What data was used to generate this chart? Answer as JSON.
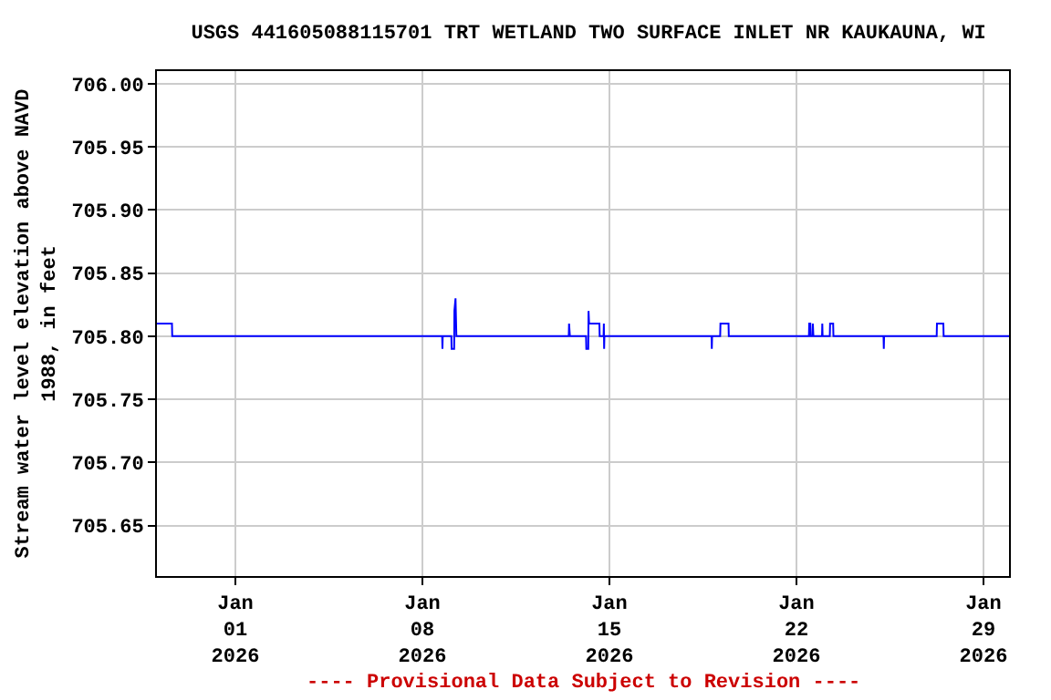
{
  "chart_data": {
    "type": "line",
    "title": "USGS 441605088115701 TRT WETLAND TWO SURFACE INLET NR KAUKAUNA, WI",
    "ylabel": "Stream water level elevation above NAVD\n1988, in feet",
    "annotations": [
      "---- Provisional Data Subject to Revision ----"
    ],
    "x": [
      "2025-12-29T01:30",
      "2025-12-29T15:00",
      "2025-12-29T15:15",
      "2026-01-08T17:45",
      "2026-01-08T18:00",
      "2026-01-08T18:15",
      "2026-01-09T02:00",
      "2026-01-09T02:15",
      "2026-01-09T04:30",
      "2026-01-09T04:45",
      "2026-01-09T05:45",
      "2026-01-09T06:30",
      "2026-01-13T11:30",
      "2026-01-13T11:45",
      "2026-01-13T12:30",
      "2026-01-14T03:00",
      "2026-01-14T03:15",
      "2026-01-14T05:00",
      "2026-01-14T05:15",
      "2026-01-14T05:45",
      "2026-01-14T15:00",
      "2026-01-14T15:15",
      "2026-01-14T18:45",
      "2026-01-14T19:00",
      "2026-01-14T19:15",
      "2026-01-14T19:30",
      "2026-01-18T19:45",
      "2026-01-18T20:00",
      "2026-01-18T20:15",
      "2026-01-19T03:30",
      "2026-01-19T03:45",
      "2026-01-19T11:00",
      "2026-01-19T11:15",
      "2026-01-22T11:15",
      "2026-01-22T11:30",
      "2026-01-22T12:30",
      "2026-01-22T12:45",
      "2026-01-22T14:30",
      "2026-01-22T14:45",
      "2026-01-22T15:15",
      "2026-01-22T23:00",
      "2026-01-22T23:15",
      "2026-01-22T23:30",
      "2026-01-23T06:00",
      "2026-01-23T06:15",
      "2026-01-23T09:00",
      "2026-01-23T09:15",
      "2026-01-25T06:15",
      "2026-01-25T06:30",
      "2026-01-25T06:45",
      "2026-01-27T06:00",
      "2026-01-27T06:15",
      "2026-01-27T12:00",
      "2026-01-27T12:15",
      "2026-01-29T23:00"
    ],
    "series": [
      {
        "color": "#0000ff",
        "values": [
          705.81,
          705.81,
          705.8,
          705.8,
          705.79,
          705.8,
          705.8,
          705.79,
          705.79,
          705.82,
          705.83,
          705.8,
          705.8,
          705.81,
          705.8,
          705.8,
          705.79,
          705.79,
          705.82,
          705.81,
          705.81,
          705.8,
          705.8,
          705.81,
          705.79,
          705.8,
          705.8,
          705.79,
          705.8,
          705.8,
          705.81,
          705.81,
          705.8,
          705.8,
          705.81,
          705.81,
          705.8,
          705.8,
          705.81,
          705.8,
          705.8,
          705.81,
          705.8,
          705.8,
          705.81,
          705.81,
          705.8,
          705.8,
          705.79,
          705.8,
          705.8,
          705.81,
          705.81,
          705.8,
          705.8
        ]
      }
    ],
    "xlim": [
      "2025-12-29T01:30",
      "2026-01-29T23:00"
    ],
    "xticks": [
      {
        "value": "2026-01-01",
        "label": "Jan\n01\n2026"
      },
      {
        "value": "2026-01-08",
        "label": "Jan\n08\n2026"
      },
      {
        "value": "2026-01-15",
        "label": "Jan\n15\n2026"
      },
      {
        "value": "2026-01-22",
        "label": "Jan\n22\n2026"
      },
      {
        "value": "2026-01-29",
        "label": "Jan\n29\n2026"
      }
    ],
    "ylim": [
      705.61,
      706.01
    ],
    "yticks": [
      {
        "value": 705.65,
        "label": "705.65"
      },
      {
        "value": 705.7,
        "label": "705.70"
      },
      {
        "value": 705.75,
        "label": "705.75"
      },
      {
        "value": 705.8,
        "label": "705.80"
      },
      {
        "value": 705.85,
        "label": "705.85"
      },
      {
        "value": 705.9,
        "label": "705.90"
      },
      {
        "value": 705.95,
        "label": "705.95"
      },
      {
        "value": 706,
        "label": "706.00"
      }
    ],
    "grid": true,
    "marker": "none",
    "line_style": "solid"
  }
}
